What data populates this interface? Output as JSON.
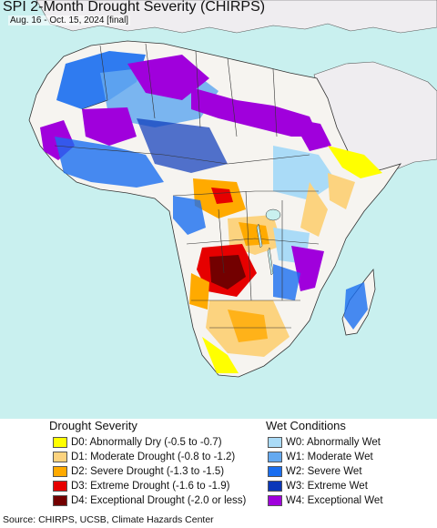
{
  "title": "SPI 2-Month Drought Severity (CHIRPS)",
  "subtitle": "Aug. 16 - Oct. 15, 2024 [final]",
  "colors": {
    "ocean": "#c9f0ef",
    "land_outside": "#efedf0",
    "border": "#333333"
  },
  "legend": {
    "drought": {
      "heading": "Drought Severity",
      "items": [
        {
          "label": "D0: Abnormally Dry (-0.5 to -0.7)",
          "color": "#ffff00"
        },
        {
          "label": "D1: Moderate Drought (-0.8 to -1.2)",
          "color": "#fcd37f"
        },
        {
          "label": "D2: Severe Drought (-1.3 to -1.5)",
          "color": "#ffaa00"
        },
        {
          "label": "D3: Extreme Drought (-1.6 to -1.9)",
          "color": "#e60000"
        },
        {
          "label": "D4: Exceptional Drought (-2.0 or less)",
          "color": "#730000"
        }
      ]
    },
    "wet": {
      "heading": "Wet Conditions",
      "items": [
        {
          "label": "W0: Abnormally Wet",
          "color": "#aadbf7"
        },
        {
          "label": "W1: Moderate Wet",
          "color": "#64a9f0"
        },
        {
          "label": "W2: Severe Wet",
          "color": "#1a6ef0"
        },
        {
          "label": "W3: Extreme Wet",
          "color": "#0a37b9"
        },
        {
          "label": "W4: Exceptional Wet",
          "color": "#a000dc"
        }
      ]
    }
  },
  "source": "Source: CHIRPS, UCSB, Climate Hazards Center"
}
